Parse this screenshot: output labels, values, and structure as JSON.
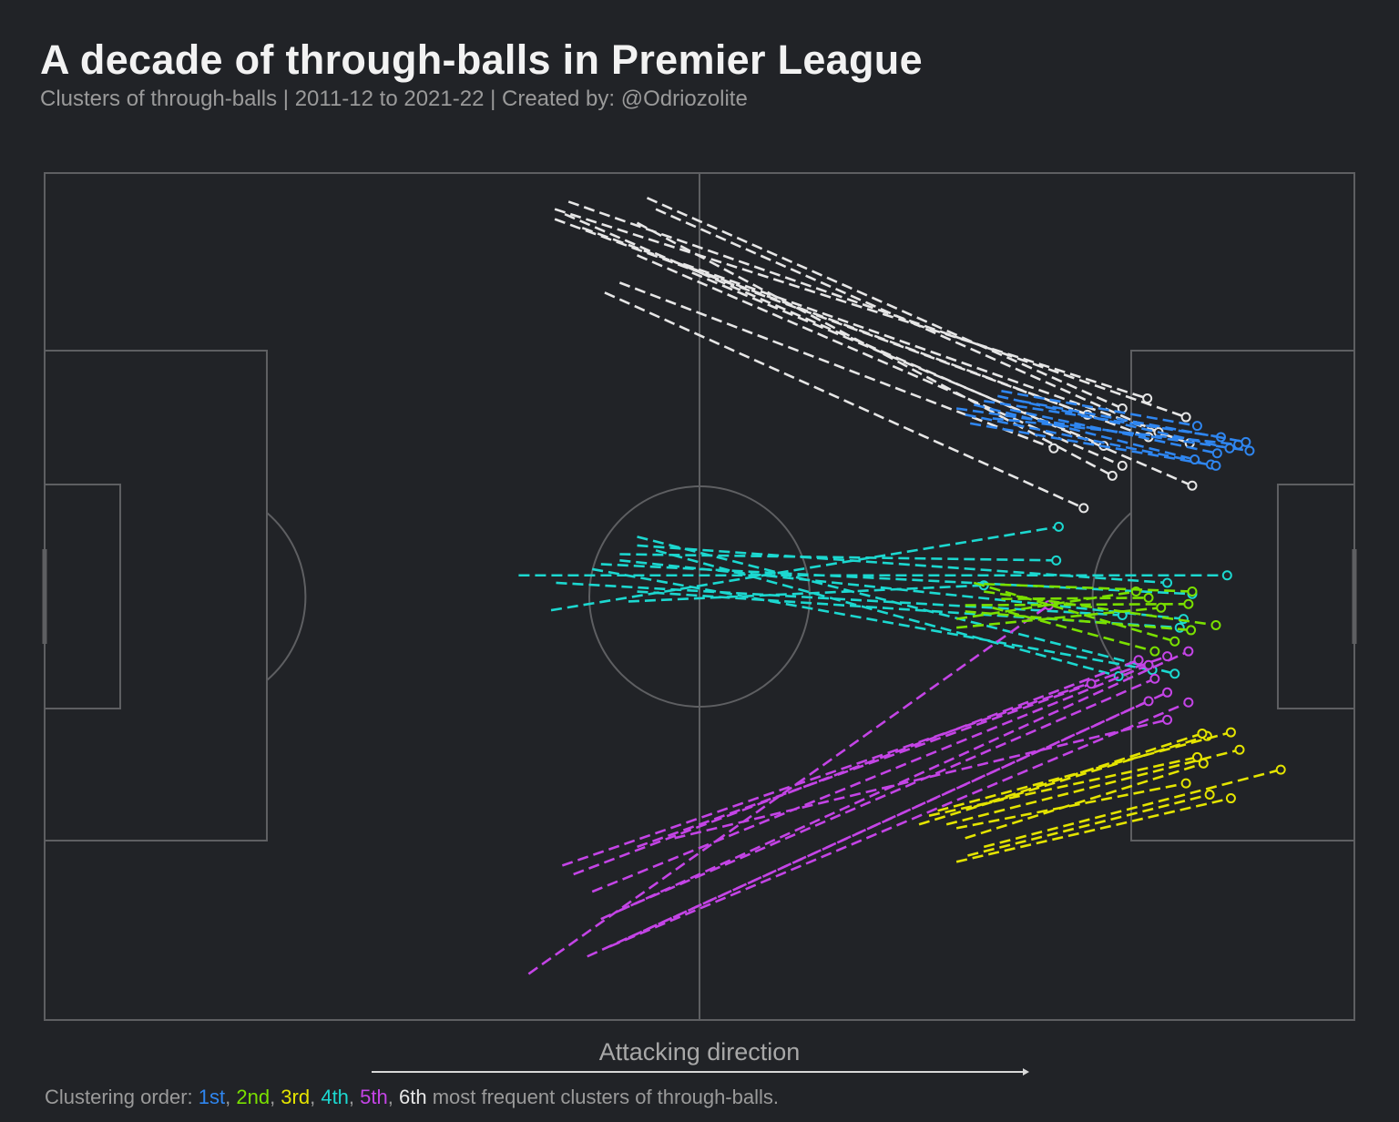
{
  "title": "A decade of through-balls in Premier League",
  "subtitle": "Clusters of through-balls | 2011-12 to 2021-22 | Created by: @Odriozolite",
  "direction_label": "Attacking direction",
  "footer": {
    "prefix": "Clustering order: ",
    "labels": [
      "1st",
      "2nd",
      "3rd",
      "4th",
      "5th",
      "6th"
    ],
    "sep": ", ",
    "suffix": " most frequent clusters of through-balls."
  },
  "colors": {
    "background": "#212327",
    "pitch_lines": "#5e5f62",
    "clusters": [
      "#2f86f0",
      "#7ae000",
      "#e4e400",
      "#1cd8d0",
      "#c444e6",
      "#e6e6e6"
    ]
  },
  "chart_data": {
    "type": "line",
    "title": "A decade of through-balls in Premier League",
    "xlabel": "Attacking direction",
    "pitch": {
      "length": 105,
      "width": 68
    },
    "xlim": [
      0,
      105
    ],
    "ylim": [
      0,
      68
    ],
    "clusters": [
      {
        "rank": "1st",
        "passes": [
          [
            73.1,
            18.9,
            96.6,
            22.3
          ],
          [
            75.3,
            18.3,
            94.3,
            21.2
          ],
          [
            73.8,
            19.4,
            93.5,
            23.4
          ],
          [
            76.7,
            17.5,
            92.4,
            20.3
          ],
          [
            76.0,
            19.7,
            95.7,
            21.8
          ],
          [
            74.5,
            18.6,
            92.2,
            23.0
          ],
          [
            78.2,
            18.3,
            96.3,
            21.6
          ],
          [
            77.4,
            19.0,
            94.0,
            22.5
          ],
          [
            74.2,
            20.1,
            93.9,
            23.5
          ],
          [
            76.4,
            17.9,
            95.0,
            22.1
          ]
        ]
      },
      {
        "rank": "2nd",
        "passes": [
          [
            73.8,
            34.7,
            91.7,
            34.6
          ],
          [
            74.5,
            32.9,
            90.6,
            37.6
          ],
          [
            73.1,
            35.8,
            87.5,
            33.6
          ],
          [
            75.3,
            33.6,
            93.9,
            36.3
          ],
          [
            73.8,
            35.2,
            91.9,
            36.7
          ],
          [
            76.7,
            34.2,
            88.5,
            34.1
          ],
          [
            73.1,
            36.5,
            89.5,
            34.9
          ],
          [
            75.3,
            33.0,
            92.0,
            33.6
          ],
          [
            76.0,
            34.9,
            89.0,
            38.4
          ]
        ]
      },
      {
        "rank": "3rd",
        "passes": [
          [
            73.1,
            55.3,
            95.1,
            50.2
          ],
          [
            70.1,
            52.3,
            93.2,
            45.2
          ],
          [
            71.6,
            51.2,
            95.1,
            44.9
          ],
          [
            75.3,
            54.1,
            99.1,
            47.9
          ],
          [
            73.8,
            53.4,
            92.9,
            47.4
          ],
          [
            72.3,
            52.3,
            95.8,
            46.3
          ],
          [
            74.0,
            54.8,
            93.4,
            49.9
          ],
          [
            70.9,
            51.6,
            92.4,
            46.9
          ],
          [
            73.1,
            52.6,
            91.5,
            49.0
          ],
          [
            74.5,
            50.9,
            92.8,
            45.0
          ]
        ]
      },
      {
        "rank": "4th",
        "passes": [
          [
            47.5,
            29.2,
            90.6,
            40.2
          ],
          [
            38.0,
            32.3,
            94.8,
            32.3
          ],
          [
            40.6,
            35.1,
            81.3,
            28.4
          ],
          [
            46.1,
            30.6,
            81.1,
            31.1
          ],
          [
            47.5,
            29.9,
            90.0,
            32.9
          ],
          [
            43.9,
            31.8,
            88.8,
            39.9
          ],
          [
            41.0,
            32.9,
            86.4,
            35.5
          ],
          [
            46.8,
            34.4,
            75.3,
            33.1
          ],
          [
            44.6,
            31.4,
            92.0,
            33.8
          ],
          [
            49.0,
            30.3,
            86.1,
            40.4
          ],
          [
            47.5,
            33.6,
            91.0,
            36.5
          ],
          [
            46.1,
            31.1,
            91.3,
            35.8
          ]
        ]
      },
      {
        "rank": "5th",
        "passes": [
          [
            41.5,
            55.6,
            90.0,
            38.8
          ],
          [
            38.8,
            64.3,
            80.5,
            34.7
          ],
          [
            43.9,
            57.7,
            88.5,
            39.5
          ],
          [
            43.5,
            62.9,
            90.0,
            41.7
          ],
          [
            47.5,
            54.1,
            83.9,
            41.0
          ],
          [
            46.1,
            59.2,
            89.0,
            40.6
          ],
          [
            44.6,
            59.9,
            91.7,
            38.4
          ],
          [
            46.8,
            61.4,
            88.5,
            42.4
          ],
          [
            50.5,
            53.4,
            90.0,
            43.9
          ],
          [
            45.3,
            62.1,
            91.7,
            42.5
          ],
          [
            42.4,
            56.3,
            87.7,
            39.1
          ]
        ]
      },
      {
        "rank": "6th",
        "passes": [
          [
            40.9,
            2.9,
            88.4,
            18.1
          ],
          [
            42.0,
            2.3,
            91.5,
            19.6
          ],
          [
            48.3,
            2.0,
            86.4,
            18.9
          ],
          [
            40.9,
            3.7,
            83.6,
            19.4
          ],
          [
            44.9,
            9.6,
            83.3,
            26.9
          ],
          [
            46.1,
            8.8,
            80.9,
            22.1
          ],
          [
            47.5,
            4.0,
            85.6,
            24.3
          ],
          [
            41.7,
            3.3,
            92.0,
            25.1
          ],
          [
            43.1,
            4.4,
            88.5,
            21.2
          ],
          [
            47.5,
            6.6,
            86.4,
            23.5
          ],
          [
            51.2,
            7.3,
            91.8,
            21.7
          ],
          [
            51.9,
            8.0,
            84.9,
            21.9
          ],
          [
            49.0,
            2.9,
            89.3,
            20.8
          ]
        ]
      }
    ]
  }
}
